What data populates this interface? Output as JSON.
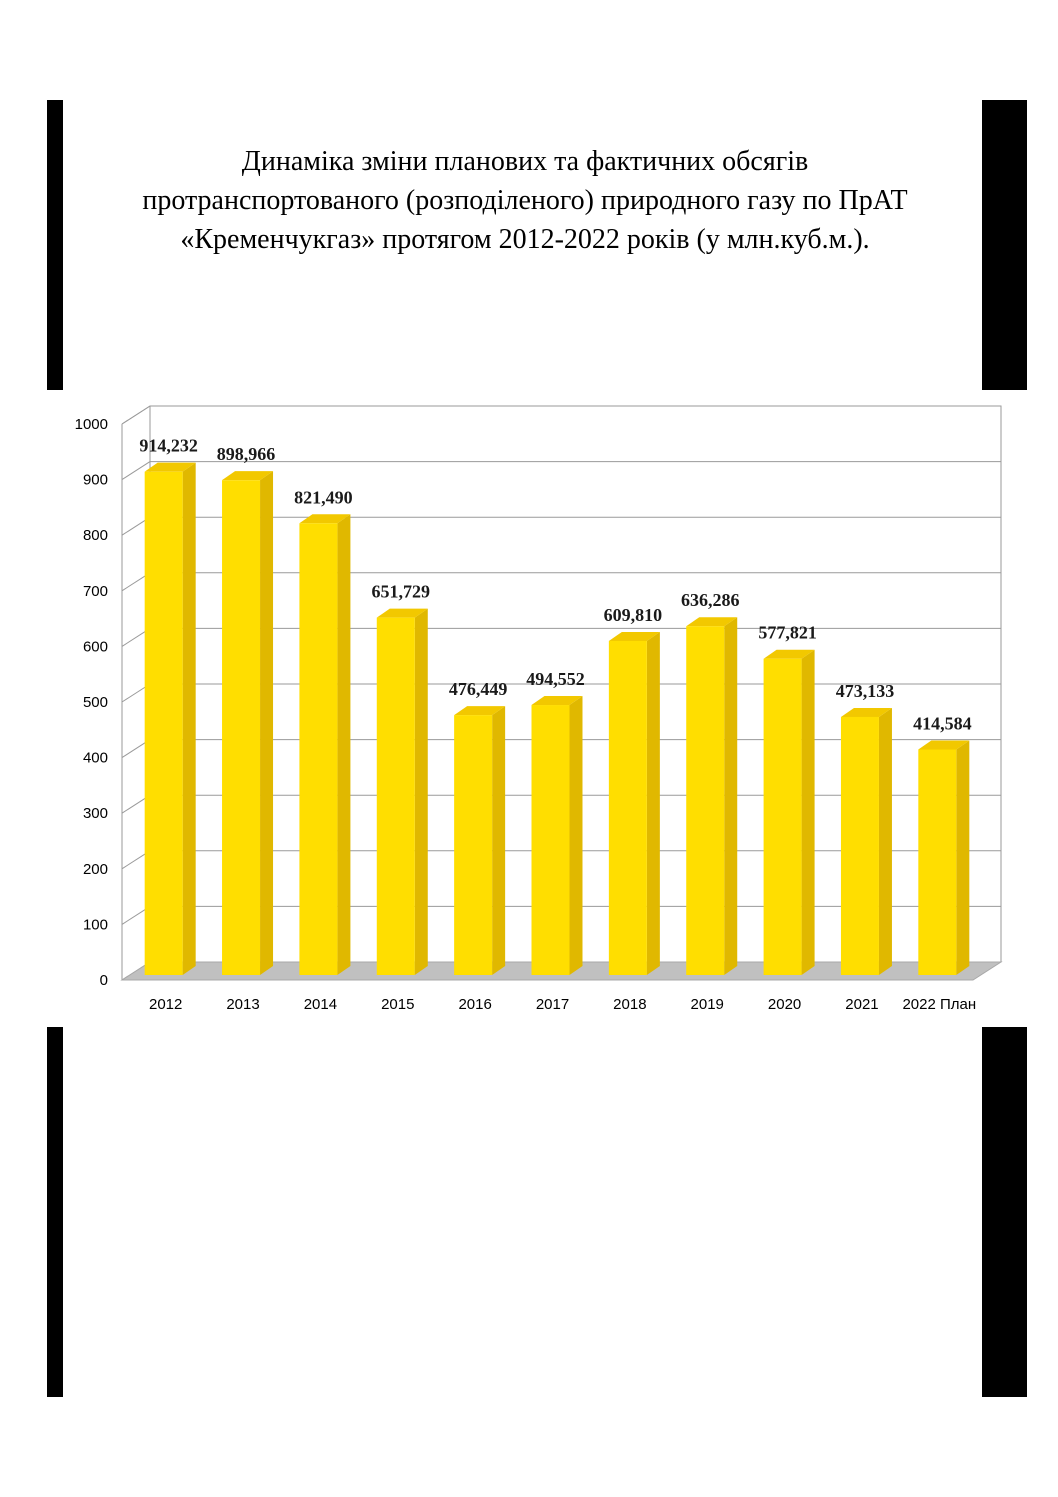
{
  "title_lines": [
    "Динаміка зміни планових та фактичних обсягів",
    "протранспортованого (розподіленого)  природного газу  по ПрАТ",
    "«Кременчукгаз» протягом 2012-2022 років (у млн.куб.м.)."
  ],
  "colors": {
    "bar_front": "#ffde00",
    "bar_side": "#e0b800",
    "bar_top": "#f2c800",
    "floor": "#c0c0c0",
    "grid": "#9a9a9a",
    "frame": "#000000"
  },
  "chart_data": {
    "type": "bar",
    "title": "",
    "xlabel": "",
    "ylabel": "",
    "ylim": [
      0,
      1000
    ],
    "y_ticks": [
      0,
      100,
      200,
      300,
      400,
      500,
      600,
      700,
      800,
      900,
      1000
    ],
    "categories": [
      "2012",
      "2013",
      "2014",
      "2015",
      "2016",
      "2017",
      "2018",
      "2019",
      "2020",
      "2021",
      "2022 План"
    ],
    "values": [
      914.232,
      898.966,
      821.49,
      651.729,
      476.449,
      494.552,
      609.81,
      636.286,
      577.821,
      473.133,
      414.584
    ],
    "data_labels": [
      "914,232",
      "898,966",
      "821,490",
      "651,729",
      "476,449",
      "494,552",
      "609,810",
      "636,286",
      "577,821",
      "473,133",
      "414,584"
    ],
    "grid": true,
    "legend": "none",
    "style": "3d"
  }
}
